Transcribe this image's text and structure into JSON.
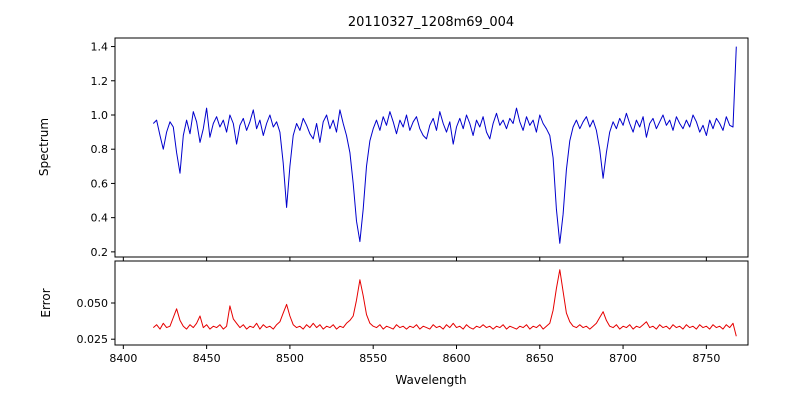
{
  "figure": {
    "background": "#ffffff"
  },
  "chart_data": {
    "type": "line",
    "title": "20110327_1208m69_004",
    "xlabel": "Wavelength",
    "grid": false,
    "legend": "none",
    "xlim": [
      8395,
      8775
    ],
    "xticks": [
      8400,
      8450,
      8500,
      8550,
      8600,
      8650,
      8700,
      8750
    ],
    "xticklabels": [
      "8400",
      "8450",
      "8500",
      "8550",
      "8600",
      "8650",
      "8700",
      "8750"
    ],
    "x": {
      "start": 8418,
      "step": 2,
      "count": 176
    },
    "panels": [
      {
        "ylabel": "Spectrum",
        "ylim": [
          0.17,
          1.45
        ],
        "yticks": [
          0.2,
          0.4,
          0.6,
          0.8,
          1.0,
          1.2,
          1.4
        ],
        "yticklabels": [
          "0.2",
          "0.4",
          "0.6",
          "0.8",
          "1.0",
          "1.2",
          "1.4"
        ],
        "series": [
          {
            "name": "spectrum",
            "color": "#0000cd",
            "values": [
              0.95,
              0.97,
              0.88,
              0.8,
              0.9,
              0.96,
              0.93,
              0.78,
              0.66,
              0.88,
              0.97,
              0.89,
              1.02,
              0.96,
              0.84,
              0.92,
              1.04,
              0.87,
              0.95,
              0.99,
              0.93,
              0.97,
              0.9,
              1.0,
              0.95,
              0.83,
              0.94,
              0.98,
              0.91,
              0.96,
              1.03,
              0.92,
              0.97,
              0.88,
              0.95,
              1.0,
              0.93,
              0.96,
              0.9,
              0.72,
              0.46,
              0.7,
              0.88,
              0.95,
              0.91,
              0.98,
              0.94,
              0.89,
              0.86,
              0.95,
              0.84,
              0.96,
              1.0,
              0.92,
              0.97,
              0.9,
              1.03,
              0.95,
              0.88,
              0.78,
              0.6,
              0.38,
              0.26,
              0.45,
              0.7,
              0.85,
              0.92,
              0.97,
              0.91,
              0.99,
              0.94,
              1.02,
              0.96,
              0.89,
              0.97,
              0.93,
              1.0,
              0.91,
              0.96,
              0.99,
              0.92,
              0.88,
              0.86,
              0.94,
              0.98,
              0.91,
              1.02,
              0.95,
              0.9,
              0.96,
              0.83,
              0.93,
              0.98,
              0.92,
              1.0,
              0.95,
              0.88,
              0.97,
              0.93,
              0.99,
              0.9,
              0.86,
              0.95,
              1.01,
              0.94,
              0.97,
              0.92,
              0.98,
              0.95,
              1.04,
              0.96,
              0.91,
              0.99,
              0.94,
              0.97,
              0.9,
              1.0,
              0.95,
              0.92,
              0.88,
              0.75,
              0.45,
              0.25,
              0.42,
              0.68,
              0.85,
              0.93,
              0.97,
              0.92,
              0.96,
              0.99,
              0.93,
              0.97,
              0.91,
              0.8,
              0.63,
              0.78,
              0.9,
              0.96,
              0.92,
              0.98,
              0.94,
              1.01,
              0.95,
              0.9,
              0.97,
              0.93,
              0.99,
              0.87,
              0.95,
              0.98,
              0.92,
              0.96,
              1.0,
              0.94,
              0.97,
              0.91,
              0.99,
              0.95,
              0.92,
              0.97,
              0.93,
              1.0,
              0.96,
              0.9,
              0.94,
              0.88,
              0.97,
              0.92,
              0.98,
              0.95,
              0.91,
              0.99,
              0.94,
              0.93,
              1.4
            ]
          }
        ]
      },
      {
        "ylabel": "Error",
        "ylim": [
          0.021,
          0.079
        ],
        "yticks": [
          0.025,
          0.05
        ],
        "yticklabels": [
          "0.025",
          "0.050"
        ],
        "series": [
          {
            "name": "error",
            "color": "#e60000",
            "values": [
              0.033,
              0.035,
              0.032,
              0.036,
              0.033,
              0.034,
              0.04,
              0.046,
              0.038,
              0.034,
              0.032,
              0.035,
              0.033,
              0.036,
              0.041,
              0.033,
              0.035,
              0.032,
              0.034,
              0.033,
              0.035,
              0.032,
              0.034,
              0.048,
              0.039,
              0.036,
              0.033,
              0.035,
              0.032,
              0.034,
              0.033,
              0.036,
              0.032,
              0.035,
              0.033,
              0.034,
              0.032,
              0.035,
              0.037,
              0.043,
              0.049,
              0.041,
              0.035,
              0.033,
              0.034,
              0.032,
              0.035,
              0.033,
              0.036,
              0.033,
              0.035,
              0.032,
              0.034,
              0.033,
              0.035,
              0.032,
              0.034,
              0.033,
              0.036,
              0.038,
              0.041,
              0.052,
              0.066,
              0.055,
              0.042,
              0.036,
              0.034,
              0.033,
              0.035,
              0.032,
              0.034,
              0.033,
              0.032,
              0.035,
              0.033,
              0.034,
              0.032,
              0.034,
              0.033,
              0.035,
              0.032,
              0.034,
              0.033,
              0.032,
              0.035,
              0.033,
              0.034,
              0.032,
              0.035,
              0.033,
              0.036,
              0.033,
              0.034,
              0.032,
              0.035,
              0.033,
              0.032,
              0.034,
              0.033,
              0.035,
              0.033,
              0.034,
              0.032,
              0.034,
              0.033,
              0.035,
              0.032,
              0.034,
              0.033,
              0.032,
              0.034,
              0.033,
              0.035,
              0.032,
              0.034,
              0.033,
              0.035,
              0.032,
              0.034,
              0.036,
              0.045,
              0.06,
              0.073,
              0.058,
              0.043,
              0.037,
              0.034,
              0.033,
              0.035,
              0.033,
              0.034,
              0.032,
              0.034,
              0.036,
              0.04,
              0.044,
              0.038,
              0.034,
              0.033,
              0.035,
              0.032,
              0.034,
              0.033,
              0.035,
              0.032,
              0.034,
              0.033,
              0.035,
              0.037,
              0.033,
              0.034,
              0.032,
              0.035,
              0.033,
              0.034,
              0.032,
              0.035,
              0.033,
              0.034,
              0.032,
              0.035,
              0.033,
              0.034,
              0.032,
              0.035,
              0.033,
              0.034,
              0.032,
              0.035,
              0.033,
              0.034,
              0.032,
              0.035,
              0.033,
              0.036,
              0.027
            ]
          }
        ]
      }
    ]
  }
}
